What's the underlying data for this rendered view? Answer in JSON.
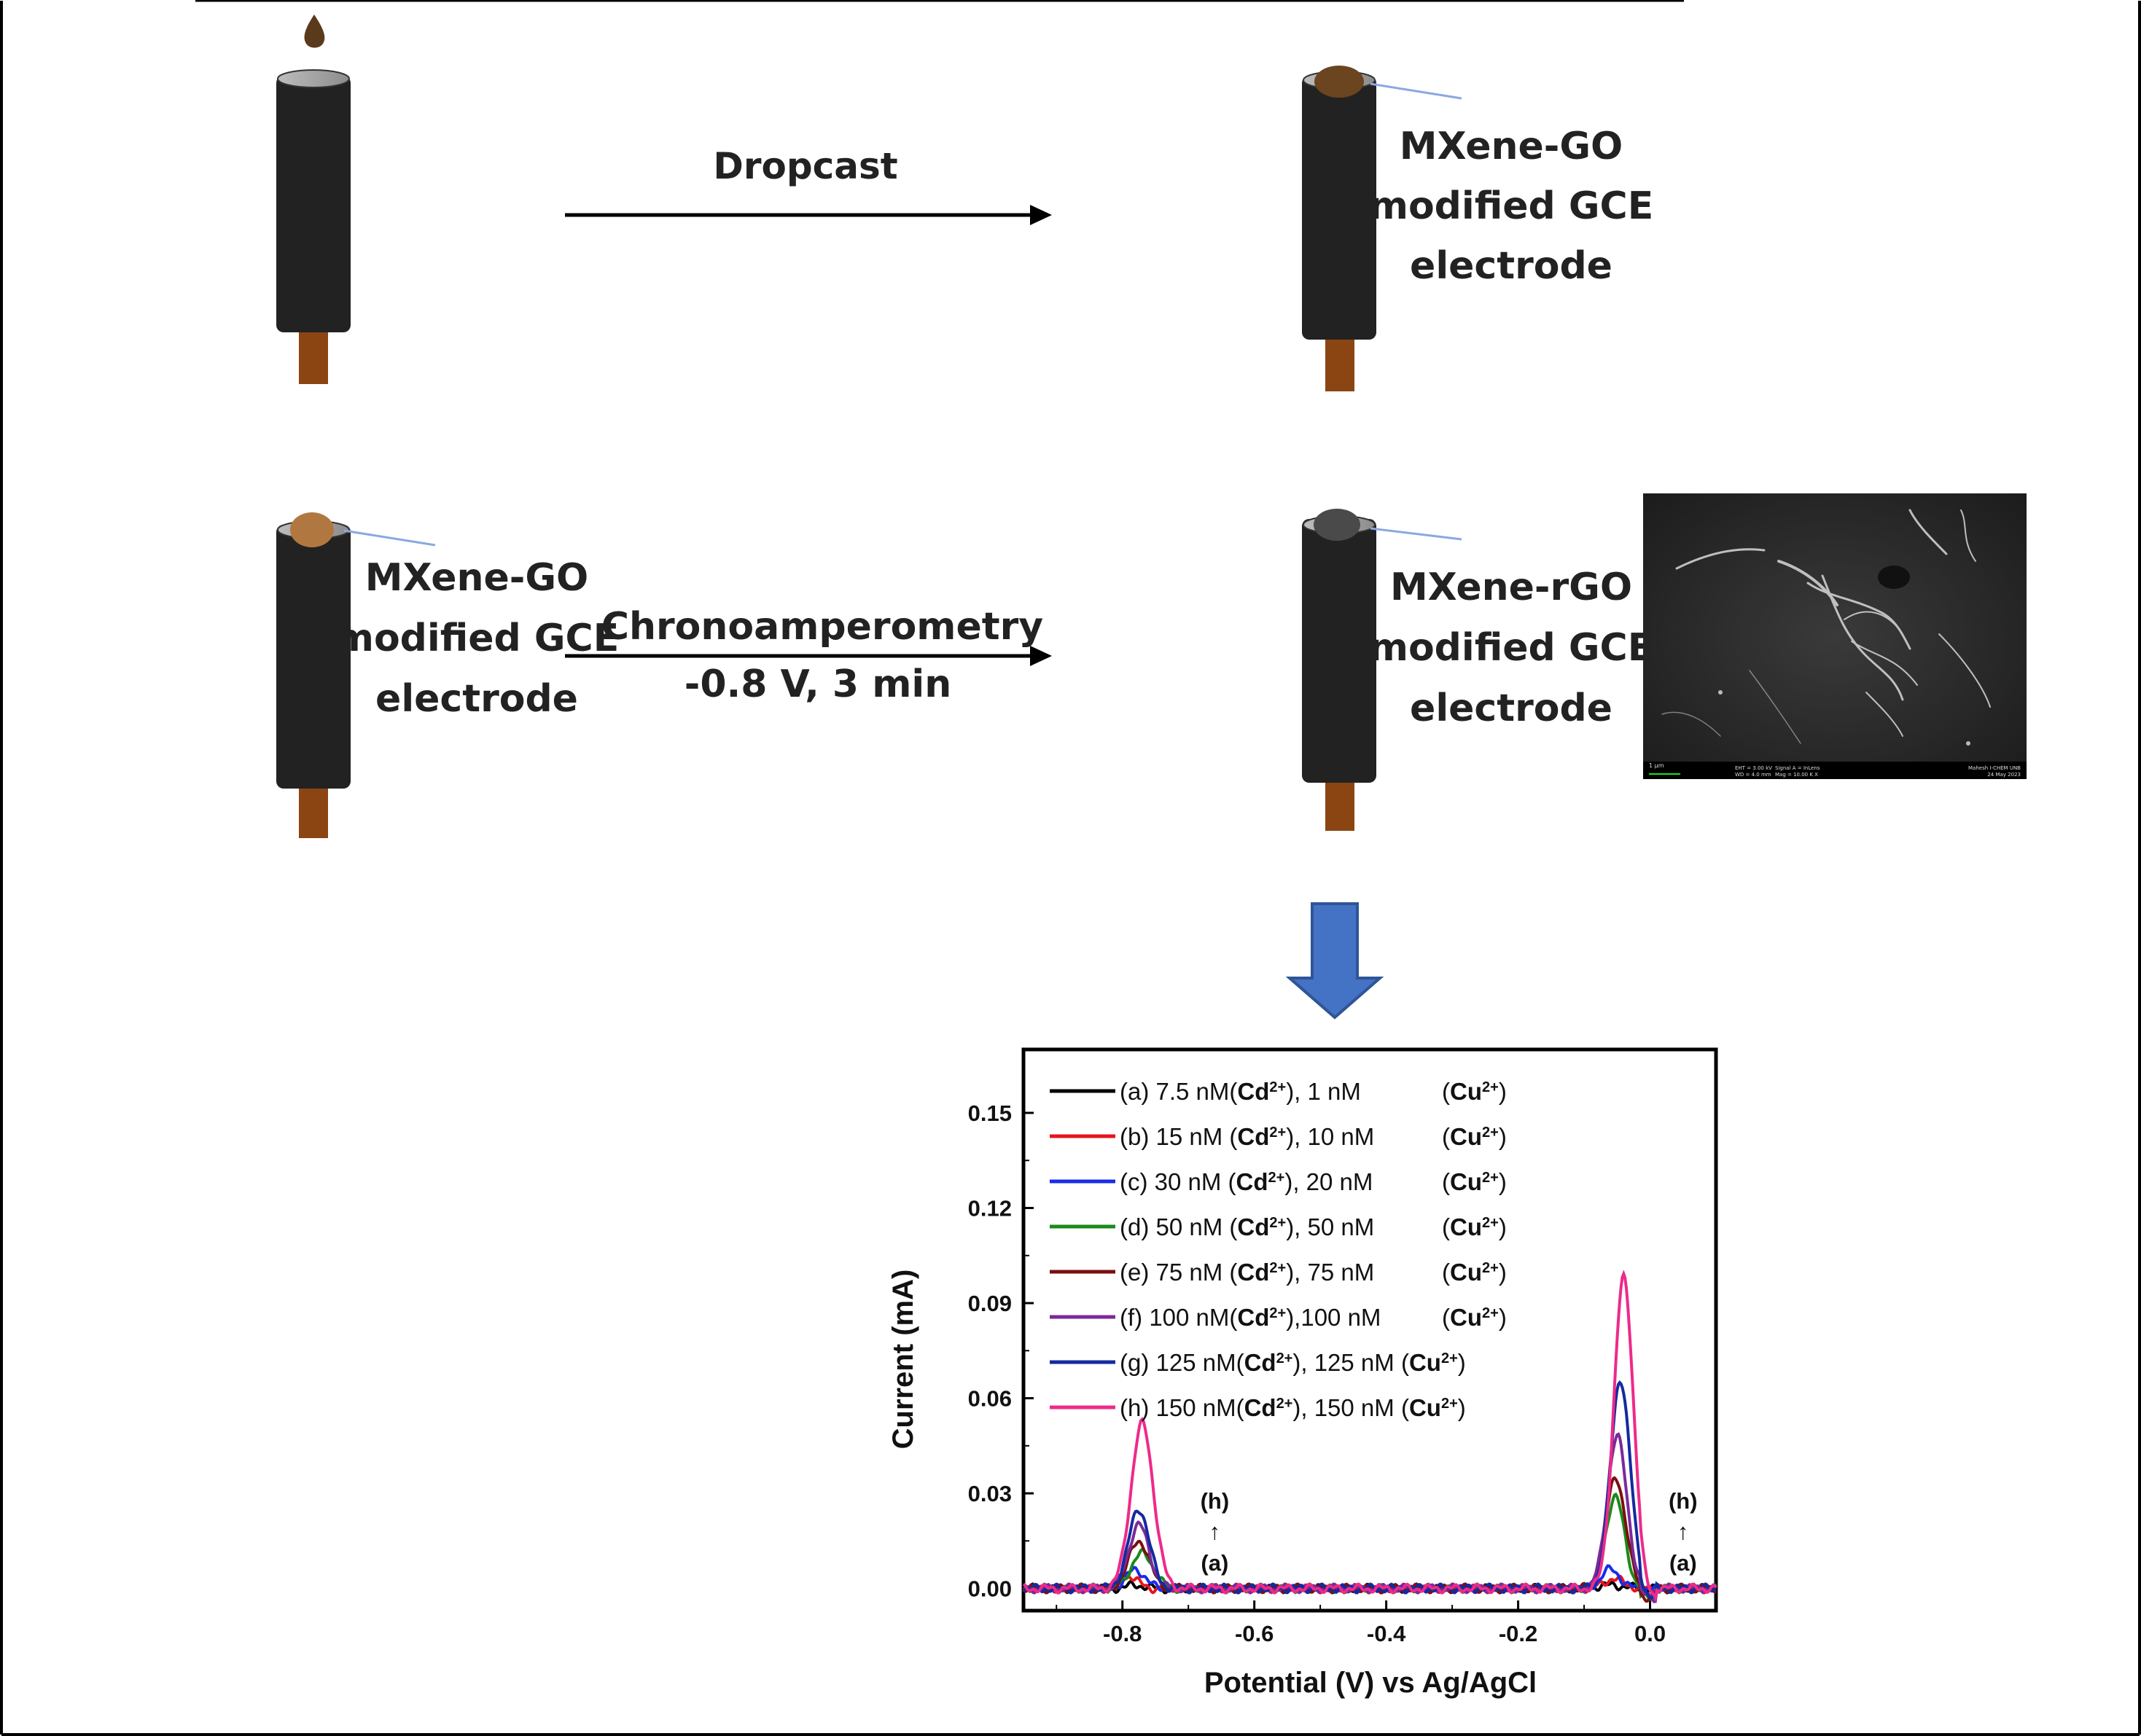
{
  "step1": {
    "arrow_label": "Dropcast",
    "result_label": [
      "MXene-GO",
      "modified GCE",
      "electrode"
    ]
  },
  "step2": {
    "start_label": [
      "MXene-GO",
      "modified GCE",
      "electrode"
    ],
    "arrow_label_1": "Chronoamperometry",
    "arrow_label_2": "-0.8 V, 3 min",
    "result_label": [
      "MXene-rGO",
      "modified GCE",
      "electrode"
    ]
  },
  "sem_image": {
    "scale_label": "1 μm",
    "info": [
      "EHT = 3.00 kV",
      "WD = 4.0 mm",
      "Signal A = InLens",
      "Mag = 10.00 K X",
      "Mahesh I-CHEM UNB",
      "24 May 2023"
    ]
  },
  "colors": {
    "electrode_body": "#222222",
    "electrode_pin": "#8B4513",
    "drop": "#5a3a1a",
    "go_coating": "#8B5A2B",
    "rgo_coating": "#4a4a4a",
    "arrow_blue": "#4472C4"
  },
  "chart_data": {
    "type": "line",
    "xlabel": "Potential (V) vs Ag/AgCl",
    "ylabel": "Current (mA)",
    "xlim": [
      -0.95,
      0.1
    ],
    "ylim": [
      -0.007,
      0.17
    ],
    "xticks": [
      "-0.8",
      "-0.6",
      "-0.4",
      "-0.2",
      "0.0"
    ],
    "xtick_values": [
      -0.8,
      -0.6,
      -0.4,
      -0.2,
      0.0
    ],
    "yticks": [
      "0.00",
      "0.03",
      "0.06",
      "0.09",
      "0.12",
      "0.15"
    ],
    "ytick_values": [
      0.0,
      0.03,
      0.06,
      0.09,
      0.12,
      0.15
    ],
    "legend_position": "top-left",
    "annotations": [
      {
        "top": "(h)",
        "arrow": "↑",
        "bottom": "(a)",
        "near_x": -0.66
      },
      {
        "top": "(h)",
        "arrow": "↑",
        "bottom": "(a)",
        "near_x": 0.05
      }
    ],
    "series": [
      {
        "name": "(a) 7.5 nM(Cd2+), 1 nM (Cu2+)",
        "legend": {
          "pre": "(a) 7.5 nM(",
          "mid": "), 1 nM",
          "cu_gap": true
        },
        "color": "#000000",
        "cd_peak": 0.001,
        "cd_x": -0.78,
        "cd_w": 0.02,
        "cu_peak": 0.001,
        "cu_x": -0.06,
        "cu_w": 0.03
      },
      {
        "name": "(b) 15 nM (Cd2+), 10 nM (Cu2+)",
        "legend": {
          "pre": "(b) 15 nM (",
          "mid": "), 10 nM",
          "cu_gap": true
        },
        "color": "#e8141c",
        "cd_peak": 0.004,
        "cd_x": -0.79,
        "cd_w": 0.018,
        "cu_peak": 0.003,
        "cu_x": -0.055,
        "cu_w": 0.022
      },
      {
        "name": "(c) 30 nM (Cd2+), 20 nM (Cu2+)",
        "legend": {
          "pre": "(c) 30 nM (",
          "mid": "), 20 nM",
          "cu_gap": true
        },
        "color": "#1a2be8",
        "cd_peak": 0.006,
        "cd_x": -0.78,
        "cd_w": 0.02,
        "cu_peak": 0.006,
        "cu_x": -0.06,
        "cu_w": 0.02
      },
      {
        "name": "(d) 50 nM (Cd2+), 50 nM (Cu2+)",
        "legend": {
          "pre": "(d) 50 nM (",
          "mid": "), 50 nM",
          "cu_gap": true
        },
        "color": "#1a8a1a",
        "cd_peak": 0.011,
        "cd_x": -0.77,
        "cd_w": 0.024,
        "cu_peak": 0.029,
        "cu_x": -0.053,
        "cu_w": 0.02
      },
      {
        "name": "(e) 75 nM (Cd2+), 75 nM (Cu2+)",
        "legend": {
          "pre": "(e) 75 nM (",
          "mid": "), 75 nM",
          "cu_gap": true
        },
        "color": "#7a1010",
        "cd_peak": 0.015,
        "cd_x": -0.775,
        "cd_w": 0.022,
        "cu_peak": 0.035,
        "cu_x": -0.052,
        "cu_w": 0.021
      },
      {
        "name": "(f) 100 nM(Cd2+),100 nM (Cu2+)",
        "legend": {
          "pre": "(f) 100 nM(",
          "mid": "),100 nM",
          "cu_gap": true
        },
        "color": "#7b2a9a",
        "cd_peak": 0.02,
        "cd_x": -0.775,
        "cd_w": 0.022,
        "cu_peak": 0.048,
        "cu_x": -0.05,
        "cu_w": 0.021
      },
      {
        "name": "(g) 125 nM(Cd2+), 125 nM (Cu2+)",
        "legend": {
          "pre": "(g) 125 nM(",
          "mid": "), 125 nM",
          "cu_gap": false
        },
        "color": "#142a9e",
        "cd_peak": 0.025,
        "cd_x": -0.775,
        "cd_w": 0.022,
        "cu_peak": 0.066,
        "cu_x": -0.045,
        "cu_w": 0.021
      },
      {
        "name": "(h) 150 nM(Cd2+), 150 nM (Cu2+)",
        "legend": {
          "pre": "(h) 150 nM(",
          "mid": "), 150 nM",
          "cu_gap": false
        },
        "color": "#ee2a8a",
        "cd_peak": 0.052,
        "cd_x": -0.77,
        "cd_w": 0.024,
        "cu_peak": 0.098,
        "cu_x": -0.04,
        "cu_w": 0.021
      }
    ]
  }
}
